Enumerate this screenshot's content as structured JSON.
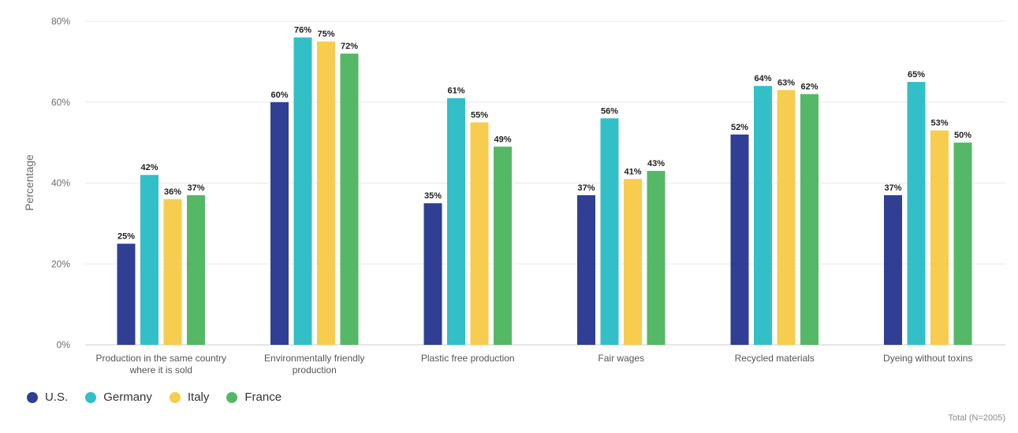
{
  "chart_data": {
    "type": "bar",
    "ylabel": "Percentage",
    "ylim": [
      0,
      80
    ],
    "yticks": [
      0,
      20,
      40,
      60,
      80
    ],
    "ytick_labels": [
      "0%",
      "20%",
      "40%",
      "60%",
      "80%"
    ],
    "value_suffix": "%",
    "grid": true,
    "legend_placement": "bottom-left",
    "categories": [
      [
        "Production in the same country",
        "where it is sold"
      ],
      [
        "Environmentally friendly",
        "production"
      ],
      [
        "Plastic free production"
      ],
      [
        "Fair wages"
      ],
      [
        "Recycled materials"
      ],
      [
        "Dyeing without toxins"
      ]
    ],
    "series": [
      {
        "name": "U.S.",
        "color": "#303f94",
        "values": [
          25,
          60,
          35,
          37,
          52,
          37
        ]
      },
      {
        "name": "Germany",
        "color": "#32bfc8",
        "values": [
          42,
          76,
          61,
          56,
          64,
          65
        ]
      },
      {
        "name": "Italy",
        "color": "#f7cd4f",
        "values": [
          36,
          75,
          55,
          41,
          63,
          53
        ]
      },
      {
        "name": "France",
        "color": "#55b866",
        "values": [
          37,
          72,
          49,
          43,
          62,
          50
        ]
      }
    ]
  },
  "footnote": "Total (N=2005)"
}
